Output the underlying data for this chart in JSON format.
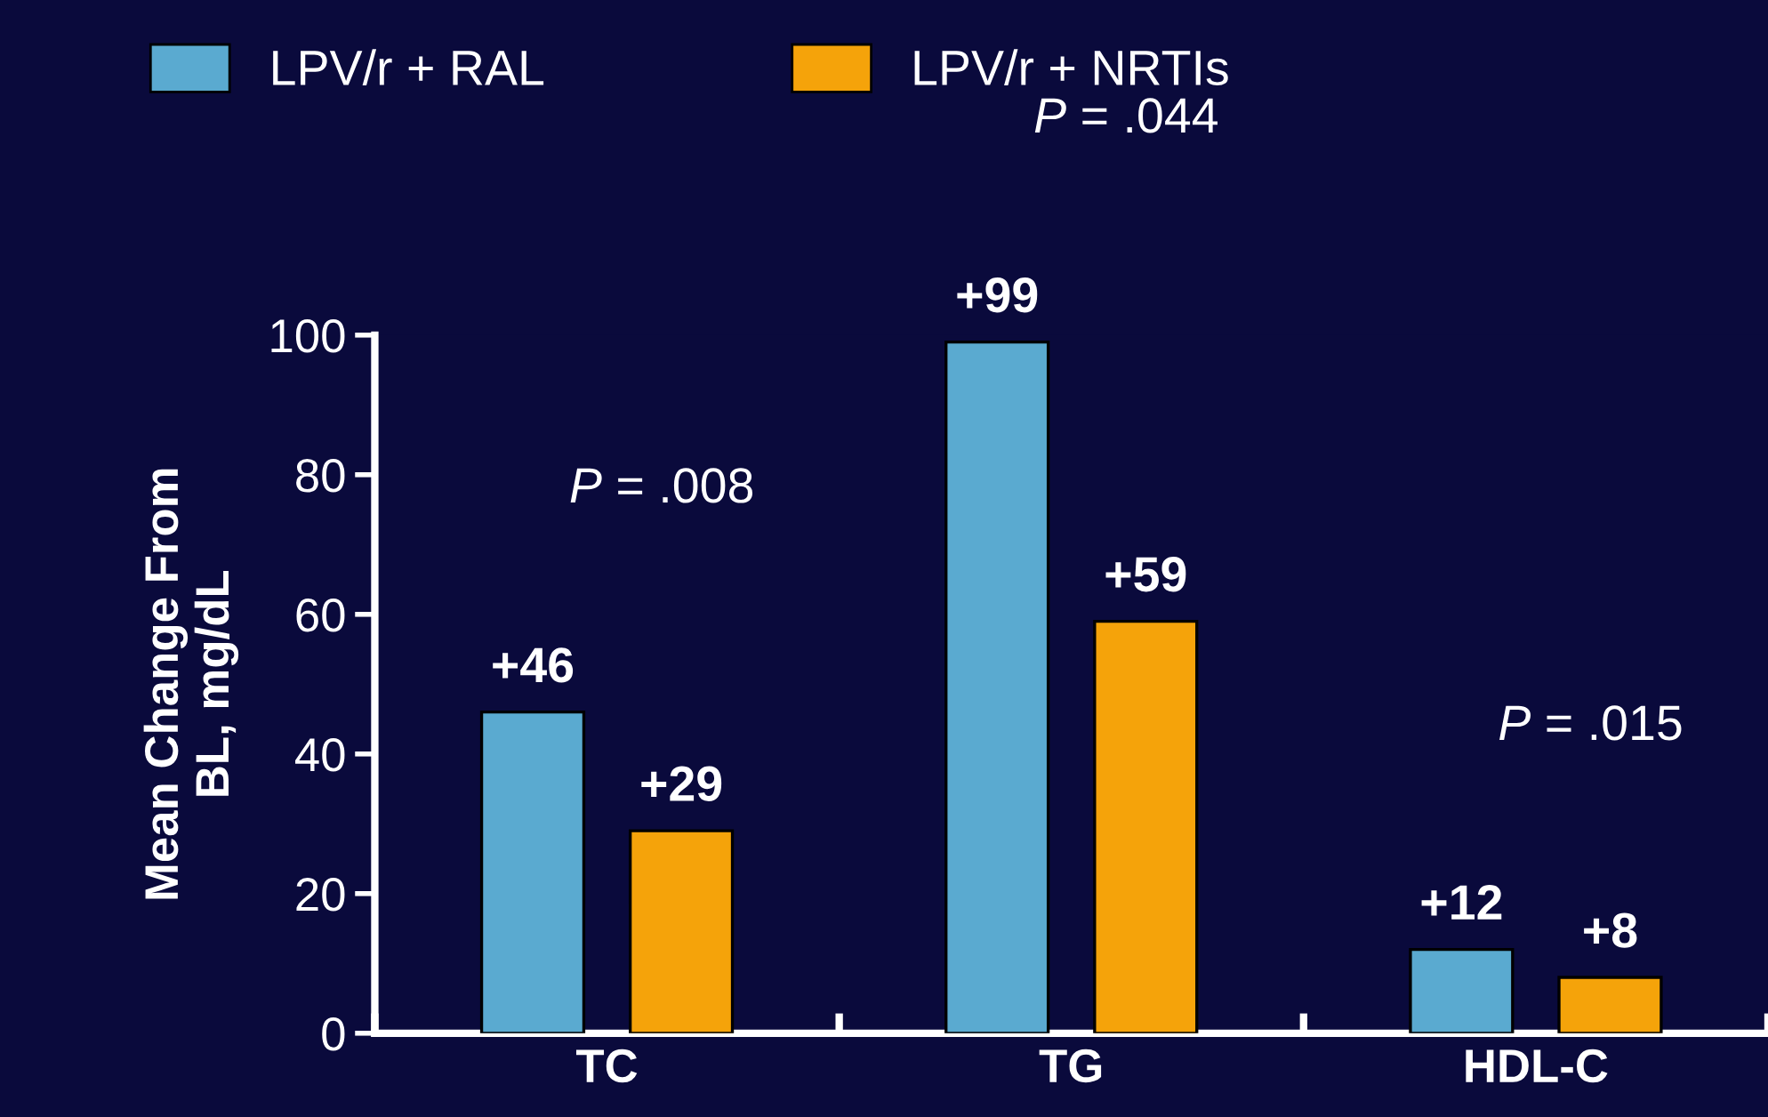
{
  "chart_data": {
    "type": "bar",
    "ylabel": "Mean Change From\nBL, mg/dL",
    "categories": [
      "TC",
      "TG",
      "HDL-C"
    ],
    "series": [
      {
        "name": "LPV/r + RAL",
        "color": "#5aaad0",
        "values": [
          46,
          99,
          12
        ],
        "value_labels": [
          "+46",
          "+99",
          "+12"
        ]
      },
      {
        "name": "LPV/r + NRTIs",
        "color": "#f5a30a",
        "values": [
          29,
          59,
          8
        ],
        "value_labels": [
          "+29",
          "+59",
          "+8"
        ]
      }
    ],
    "ylim": [
      0,
      100
    ],
    "yticks": [
      0,
      20,
      40,
      60,
      80,
      100
    ],
    "grid": false,
    "legend": "top left",
    "annotations": [
      "P = .008",
      "P = .044",
      "P = .015"
    ]
  }
}
